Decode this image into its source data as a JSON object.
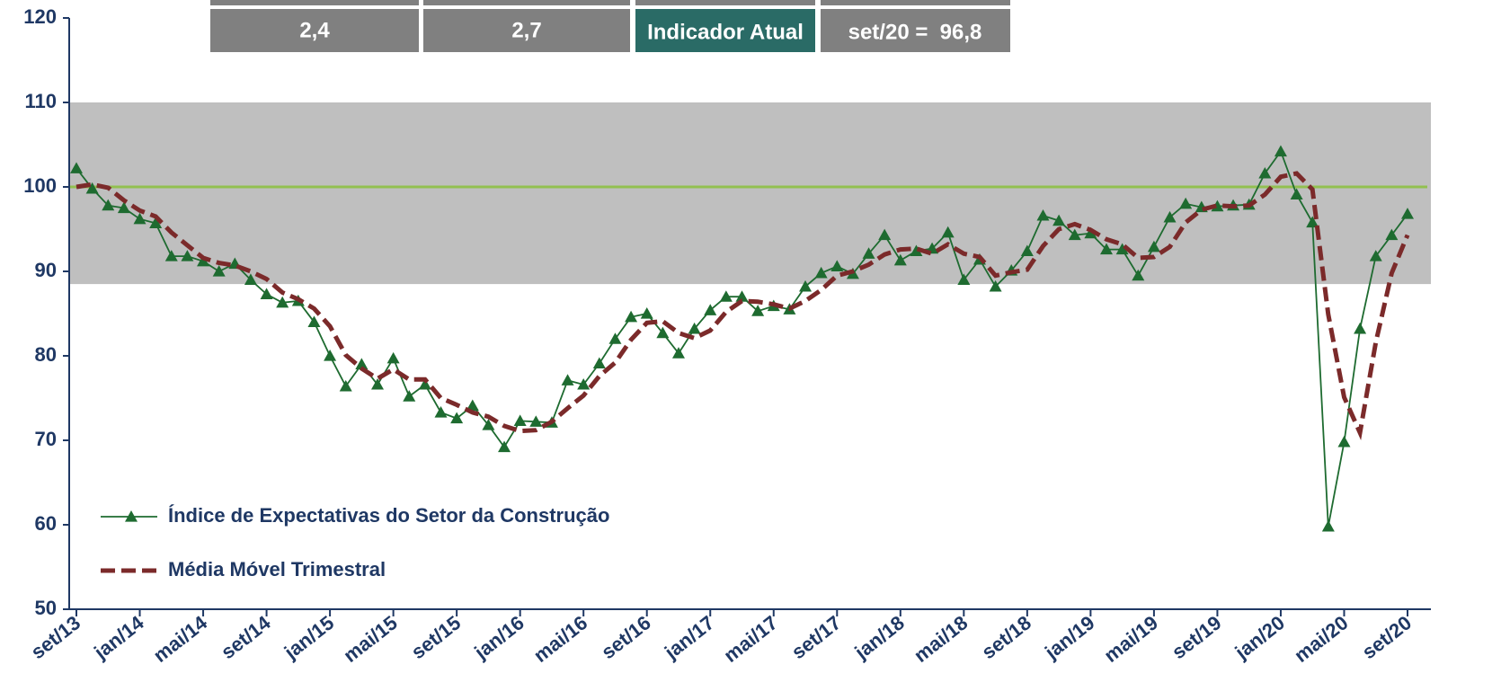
{
  "chart_data": {
    "type": "line",
    "annotations": [
      "2,4",
      "2,7",
      "Indicador Atual",
      "set/20 =  96,8"
    ],
    "categories": [
      "set/13",
      null,
      null,
      null,
      "jan/14",
      null,
      null,
      null,
      "mai/14",
      null,
      null,
      null,
      "set/14",
      null,
      null,
      null,
      "jan/15",
      null,
      null,
      null,
      "mai/15",
      null,
      null,
      null,
      "set/15",
      null,
      null,
      null,
      "jan/16",
      null,
      null,
      null,
      "mai/16",
      null,
      null,
      null,
      "set/16",
      null,
      null,
      null,
      "jan/17",
      null,
      null,
      null,
      "mai/17",
      null,
      null,
      null,
      "set/17",
      null,
      null,
      null,
      "jan/18",
      null,
      null,
      null,
      "mai/18",
      null,
      null,
      null,
      "set/18",
      null,
      null,
      null,
      "jan/19",
      null,
      null,
      null,
      "mai/19",
      null,
      null,
      null,
      "set/19",
      null,
      null,
      null,
      "jan/20",
      null,
      null,
      null,
      "mai/20",
      null,
      null,
      null,
      "set/20"
    ],
    "series": [
      {
        "name": "Índice de Expectativas do Setor da Construção",
        "color": "#1e6b30",
        "marker": "triangle",
        "values": [
          102.2,
          99.8,
          97.8,
          97.5,
          96.2,
          95.7,
          91.8,
          91.8,
          91.2,
          90.0,
          90.9,
          89.0,
          87.3,
          86.3,
          86.5,
          84.0,
          80.0,
          76.4,
          79.0,
          76.6,
          79.7,
          75.2,
          76.6,
          73.3,
          72.6,
          74.1,
          71.8,
          69.2,
          72.3,
          72.2,
          72.1,
          77.1,
          76.6,
          79.1,
          82.0,
          84.6,
          85.0,
          82.7,
          80.3,
          83.2,
          85.4,
          87.0,
          87.0,
          85.3,
          85.9,
          85.5,
          88.2,
          89.8,
          90.6,
          89.7,
          92.1,
          94.3,
          91.3,
          92.4,
          92.7,
          94.6,
          89.0,
          91.4,
          88.2,
          90.1,
          92.4,
          96.6,
          96.0,
          94.3,
          94.5,
          92.6,
          92.6,
          89.5,
          92.9,
          96.4,
          98.0,
          97.6,
          97.7,
          97.8,
          97.9,
          101.6,
          104.2,
          99.1,
          95.8,
          59.8,
          69.8,
          83.2,
          91.8,
          94.3,
          96.8
        ]
      },
      {
        "name": "Média Móvel Trimestral",
        "color": "#7b2a2a",
        "dashed": true,
        "values": [
          100.0,
          100.3,
          99.9,
          98.4,
          97.2,
          96.5,
          94.6,
          93.1,
          91.6,
          91.0,
          90.7,
          90.0,
          89.1,
          87.5,
          86.7,
          85.6,
          83.5,
          80.1,
          78.5,
          77.3,
          78.4,
          77.2,
          77.2,
          75.0,
          74.2,
          73.3,
          72.8,
          71.7,
          71.1,
          71.2,
          72.2,
          73.8,
          75.3,
          77.6,
          79.2,
          81.9,
          83.9,
          84.1,
          82.7,
          82.1,
          83.0,
          85.2,
          86.5,
          86.4,
          86.1,
          85.6,
          86.5,
          87.8,
          89.5,
          90.0,
          90.8,
          92.0,
          92.6,
          92.7,
          92.1,
          93.2,
          92.1,
          91.7,
          89.5,
          89.9,
          90.2,
          93.0,
          95.0,
          95.6,
          94.9,
          93.8,
          93.2,
          91.6,
          91.7,
          92.9,
          95.8,
          97.3,
          97.8,
          97.7,
          97.8,
          99.1,
          101.2,
          101.6,
          99.7,
          84.9,
          75.1,
          70.9,
          81.6,
          89.8,
          94.3
        ]
      }
    ],
    "band": [
      88.5,
      110
    ],
    "band_color": "#bfbfbf",
    "reference_line": 100,
    "reference_color": "#92c050",
    "ylim": [
      50,
      120
    ],
    "yticks": [
      50,
      60,
      70,
      80,
      90,
      100,
      110,
      120
    ],
    "legend": "lower left"
  }
}
